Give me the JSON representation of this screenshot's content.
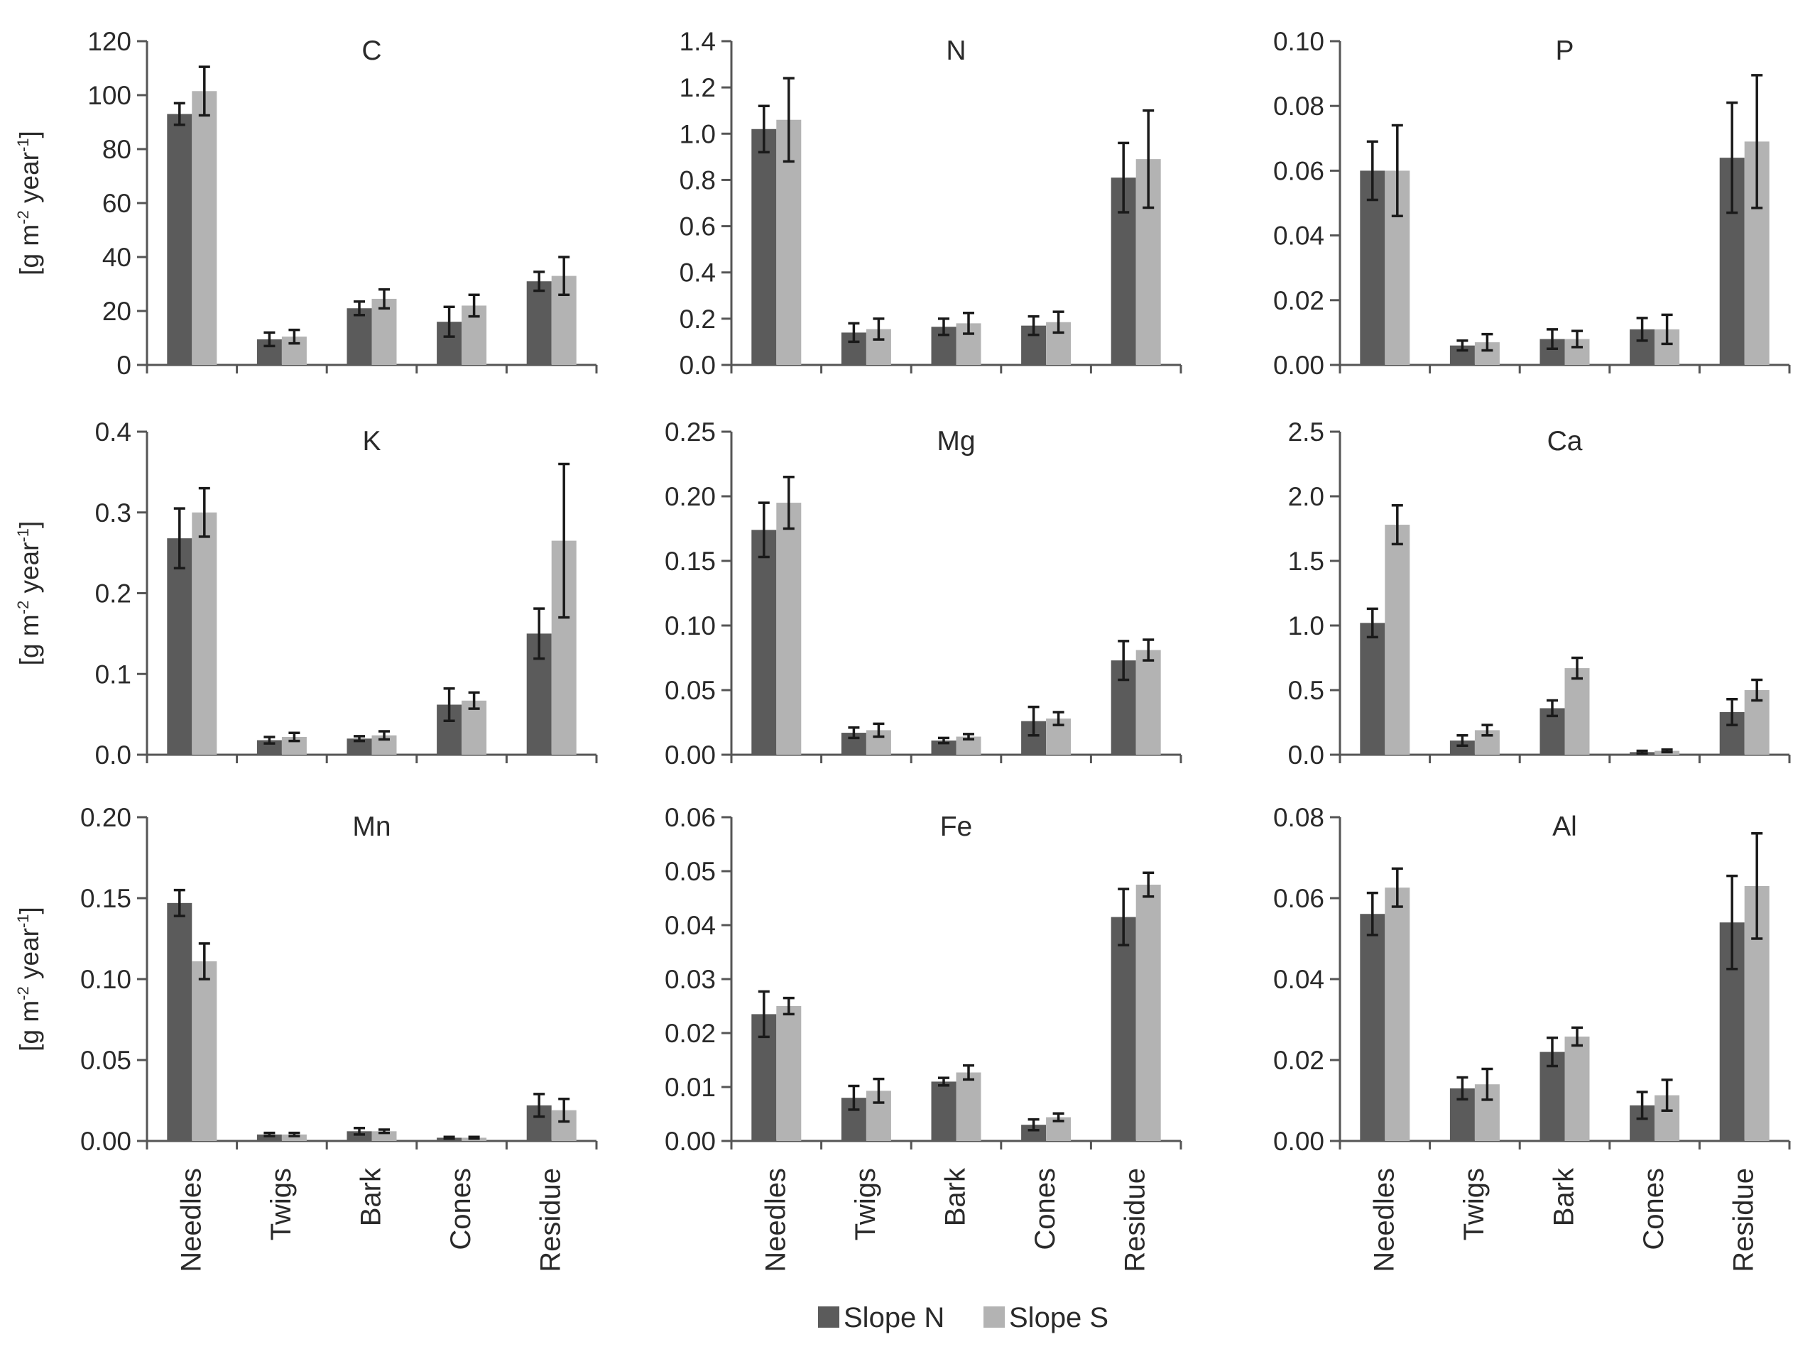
{
  "chart_data": {
    "type": "bar",
    "categories": [
      "Needles",
      "Twigs",
      "Bark",
      "Cones",
      "Residue"
    ],
    "series_names": [
      "Slope N",
      "Slope S"
    ],
    "colors": {
      "Slope N": "#5b5b5b",
      "Slope S": "#b3b3b3"
    },
    "ylabel": "[g m-2 year-1]",
    "ylabel_parts": {
      "base": "[g m",
      "exp1": "-2",
      "mid": " year",
      "exp2": "-1",
      "end": "]"
    },
    "legend": {
      "placement": "bottom-center",
      "entries": [
        "Slope N",
        "Slope S"
      ]
    },
    "panels": [
      {
        "title": "C",
        "ylim": [
          0,
          120
        ],
        "yticks": [
          "0",
          "20",
          "40",
          "60",
          "80",
          "100",
          "120"
        ],
        "series": [
          {
            "name": "Slope N",
            "values": [
              93,
              9.5,
              21,
              16,
              31
            ],
            "errors": [
              4,
              2.5,
              2.5,
              5.5,
              3.5
            ]
          },
          {
            "name": "Slope S",
            "values": [
              101.5,
              10.5,
              24.5,
              22,
              33
            ],
            "errors": [
              9,
              2.5,
              3.5,
              4,
              7
            ]
          }
        ]
      },
      {
        "title": "N",
        "ylim": [
          0,
          1.4
        ],
        "yticks": [
          "0.0",
          "0.2",
          "0.4",
          "0.6",
          "0.8",
          "1.0",
          "1.2",
          "1.4"
        ],
        "series": [
          {
            "name": "Slope N",
            "values": [
              1.02,
              0.14,
              0.165,
              0.17,
              0.81
            ],
            "errors": [
              0.1,
              0.04,
              0.035,
              0.04,
              0.15
            ]
          },
          {
            "name": "Slope S",
            "values": [
              1.06,
              0.155,
              0.18,
              0.185,
              0.89
            ],
            "errors": [
              0.18,
              0.045,
              0.045,
              0.045,
              0.21
            ]
          }
        ]
      },
      {
        "title": "P",
        "ylim": [
          0,
          0.1
        ],
        "yticks": [
          "0.00",
          "0.02",
          "0.04",
          "0.06",
          "0.08",
          "0.10"
        ],
        "series": [
          {
            "name": "Slope N",
            "values": [
              0.06,
              0.006,
              0.008,
              0.011,
              0.064
            ],
            "errors": [
              0.009,
              0.0015,
              0.003,
              0.0035,
              0.017
            ]
          },
          {
            "name": "Slope S",
            "values": [
              0.06,
              0.007,
              0.008,
              0.011,
              0.069
            ],
            "errors": [
              0.014,
              0.0025,
              0.0025,
              0.0045,
              0.0205
            ]
          }
        ]
      },
      {
        "title": "K",
        "ylim": [
          0,
          0.4
        ],
        "yticks": [
          "0.0",
          "0.1",
          "0.2",
          "0.3",
          "0.4"
        ],
        "series": [
          {
            "name": "Slope N",
            "values": [
              0.268,
              0.018,
              0.02,
              0.062,
              0.15
            ],
            "errors": [
              0.037,
              0.004,
              0.003,
              0.02,
              0.031
            ]
          },
          {
            "name": "Slope S",
            "values": [
              0.3,
              0.022,
              0.024,
              0.067,
              0.265
            ],
            "errors": [
              0.03,
              0.005,
              0.005,
              0.01,
              0.095
            ]
          }
        ]
      },
      {
        "title": "Mg",
        "ylim": [
          0,
          0.25
        ],
        "yticks": [
          "0.00",
          "0.05",
          "0.10",
          "0.15",
          "0.20",
          "0.25"
        ],
        "series": [
          {
            "name": "Slope N",
            "values": [
              0.174,
              0.017,
              0.011,
              0.026,
              0.073
            ],
            "errors": [
              0.021,
              0.004,
              0.002,
              0.011,
              0.015
            ]
          },
          {
            "name": "Slope S",
            "values": [
              0.195,
              0.019,
              0.014,
              0.028,
              0.081
            ],
            "errors": [
              0.02,
              0.005,
              0.002,
              0.005,
              0.008
            ]
          }
        ]
      },
      {
        "title": "Ca",
        "ylim": [
          0,
          2.5
        ],
        "yticks": [
          "0.0",
          "0.5",
          "1.0",
          "1.5",
          "2.0",
          "2.5"
        ],
        "series": [
          {
            "name": "Slope N",
            "values": [
              1.02,
              0.11,
              0.36,
              0.02,
              0.33
            ],
            "errors": [
              0.11,
              0.04,
              0.06,
              0.01,
              0.1
            ]
          },
          {
            "name": "Slope S",
            "values": [
              1.78,
              0.19,
              0.67,
              0.03,
              0.5
            ],
            "errors": [
              0.15,
              0.04,
              0.08,
              0.01,
              0.08
            ]
          }
        ]
      },
      {
        "title": "Mn",
        "ylim": [
          0,
          0.2
        ],
        "yticks": [
          "0.00",
          "0.05",
          "0.10",
          "0.15",
          "0.20"
        ],
        "series": [
          {
            "name": "Slope N",
            "values": [
              0.147,
              0.004,
              0.006,
              0.002,
              0.022
            ],
            "errors": [
              0.008,
              0.001,
              0.002,
              0.0005,
              0.007
            ]
          },
          {
            "name": "Slope S",
            "values": [
              0.111,
              0.004,
              0.006,
              0.002,
              0.019
            ],
            "errors": [
              0.011,
              0.001,
              0.001,
              0.0005,
              0.007
            ]
          }
        ]
      },
      {
        "title": "Fe",
        "ylim": [
          0,
          0.06
        ],
        "yticks": [
          "0.00",
          "0.01",
          "0.02",
          "0.03",
          "0.04",
          "0.05",
          "0.06"
        ],
        "series": [
          {
            "name": "Slope N",
            "values": [
              0.0235,
              0.008,
              0.011,
              0.003,
              0.0415
            ],
            "errors": [
              0.0042,
              0.0022,
              0.0007,
              0.001,
              0.0052
            ]
          },
          {
            "name": "Slope S",
            "values": [
              0.025,
              0.0093,
              0.0127,
              0.0044,
              0.0475
            ],
            "errors": [
              0.0015,
              0.0022,
              0.0013,
              0.0007,
              0.0022
            ]
          }
        ]
      },
      {
        "title": "Al",
        "ylim": [
          0,
          0.08
        ],
        "yticks": [
          "0.00",
          "0.02",
          "0.04",
          "0.06",
          "0.08"
        ],
        "series": [
          {
            "name": "Slope N",
            "values": [
              0.0561,
              0.013,
              0.022,
              0.0088,
              0.054
            ],
            "errors": [
              0.0052,
              0.0027,
              0.0035,
              0.0033,
              0.0115
            ]
          },
          {
            "name": "Slope S",
            "values": [
              0.0626,
              0.014,
              0.0258,
              0.0113,
              0.063
            ],
            "errors": [
              0.0047,
              0.0038,
              0.0022,
              0.0038,
              0.013
            ]
          }
        ]
      }
    ]
  }
}
